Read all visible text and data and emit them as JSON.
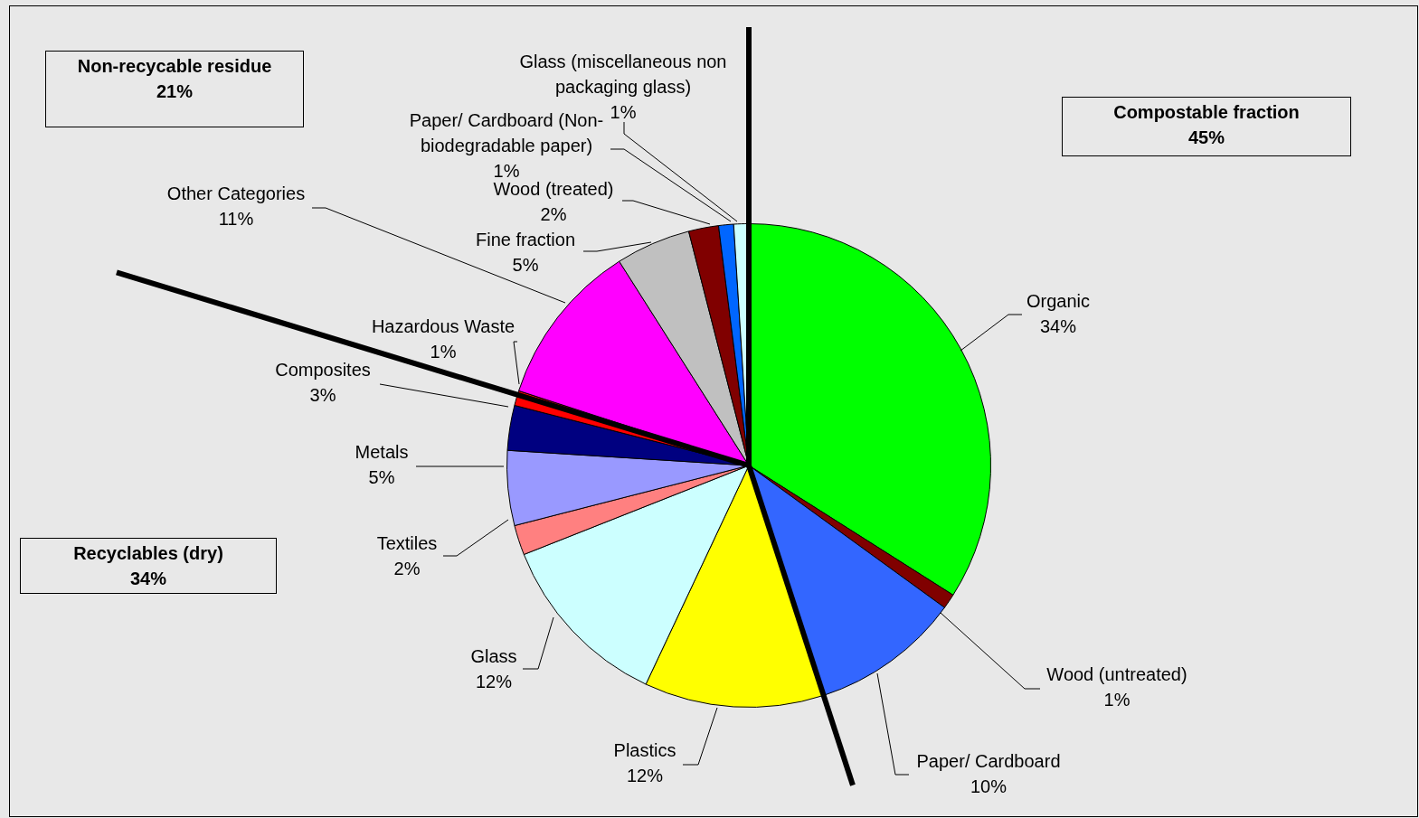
{
  "chart_data": {
    "type": "pie",
    "categories": [
      "Organic",
      "Wood (untreated)",
      "Paper/ Cardboard",
      "Plastics",
      "Glass",
      "Textiles",
      "Metals",
      "Composites",
      "Hazardous Waste",
      "Other Categories",
      "Fine fraction",
      "Wood (treated)",
      "Paper/ Cardboard (Non-biodegradable paper)",
      "Glass (miscellaneous non packaging glass)"
    ],
    "values": [
      34,
      1,
      10,
      12,
      12,
      2,
      5,
      3,
      1,
      11,
      5,
      2,
      1,
      1
    ],
    "value_labels": [
      "34%",
      "1%",
      "10%",
      "12%",
      "12%",
      "2%",
      "5%",
      "3%",
      "1%",
      "11%",
      "5%",
      "2%",
      "1%",
      "1%"
    ],
    "colors": [
      "#00ff00",
      "#800000",
      "#3366ff",
      "#ffff00",
      "#ccffff",
      "#ff8080",
      "#9999ff",
      "#000080",
      "#ff0000",
      "#ff00ff",
      "#c0c0c0",
      "#800000",
      "#0066ff",
      "#ccffff"
    ],
    "annotations": [
      "Non-recycable residue\n21%",
      "Compostable fraction\n45%",
      "Recyclables (dry)\n34%"
    ],
    "legend": false
  }
}
